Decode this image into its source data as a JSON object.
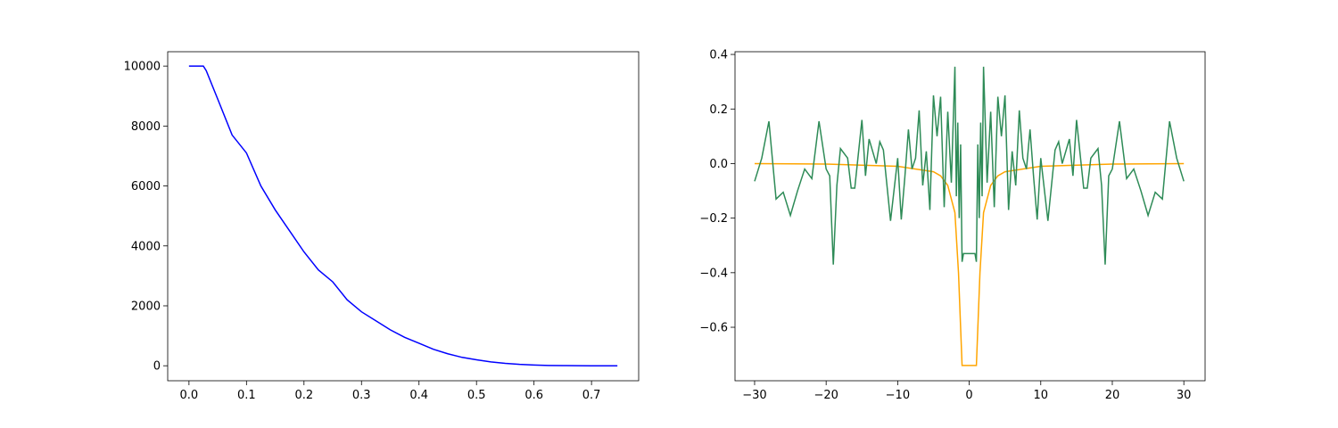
{
  "chart_data": [
    {
      "type": "line",
      "x": [
        0,
        0.025,
        0.03,
        0.05,
        0.075,
        0.1,
        0.125,
        0.15,
        0.175,
        0.2,
        0.225,
        0.25,
        0.275,
        0.3,
        0.325,
        0.35,
        0.375,
        0.4,
        0.425,
        0.45,
        0.475,
        0.5,
        0.525,
        0.55,
        0.575,
        0.6,
        0.625,
        0.65,
        0.675,
        0.7,
        0.725,
        0.745
      ],
      "values": [
        10000,
        10000,
        9850,
        8900,
        7700,
        7100,
        6000,
        5200,
        4500,
        3800,
        3200,
        2800,
        2200,
        1800,
        1500,
        1200,
        950,
        750,
        550,
        400,
        280,
        200,
        130,
        80,
        45,
        25,
        10,
        5,
        2,
        0,
        0,
        0
      ],
      "color": "#0000ff",
      "xlim": [
        -0.037,
        0.782
      ],
      "ylim": [
        -500,
        10480
      ],
      "xticks": [
        {
          "value": 0,
          "label": "0.0"
        },
        0.1,
        0.2,
        0.3,
        0.4,
        0.5,
        0.6,
        0.7
      ],
      "yticks": [
        0,
        2000,
        4000,
        6000,
        8000,
        10000
      ]
    },
    {
      "type": "line",
      "series": [
        {
          "color": "#ffa500",
          "x": [
            -30,
            -20,
            -10,
            -5,
            -4,
            -3,
            -2,
            -1.5,
            -1,
            1,
            1.5,
            2,
            3,
            4,
            5,
            10,
            20,
            30
          ],
          "values": [
            0,
            -0.002,
            -0.01,
            -0.03,
            -0.045,
            -0.08,
            -0.18,
            -0.4,
            -0.74,
            -0.74,
            -0.4,
            -0.18,
            -0.08,
            -0.045,
            -0.03,
            -0.01,
            -0.002,
            0
          ]
        },
        {
          "color": "#2e8b57",
          "x": [
            -30,
            -29,
            -28,
            -27,
            -26,
            -25,
            -24,
            -23,
            -22,
            -21,
            -20,
            -19.5,
            -19,
            -18.5,
            -18,
            -17,
            -16.5,
            -16,
            -15,
            -14.5,
            -14,
            -13,
            -12.5,
            -12,
            -11,
            -10,
            -9.5,
            -9,
            -8.5,
            -8,
            -7.5,
            -7,
            -6.5,
            -6,
            -5.5,
            -5,
            -4.5,
            -4,
            -3.5,
            -3,
            -2.5,
            -2,
            -1.8,
            -1.6,
            -1.4,
            -1.2,
            -1,
            -0.8,
            0,
            0.8,
            1,
            1.2,
            1.4,
            1.6,
            1.8,
            2,
            2.5,
            3,
            3.5,
            4,
            4.5,
            5,
            5.5,
            6,
            6.5,
            7,
            7.5,
            8,
            8.5,
            9,
            9.5,
            10,
            11,
            12,
            12.5,
            13,
            14,
            14.5,
            15,
            16,
            16.5,
            17,
            18,
            18.5,
            19,
            19.5,
            20,
            21,
            22,
            23,
            24,
            25,
            26,
            27,
            28,
            29,
            30
          ],
          "values": [
            -0.065,
            0.02,
            0.155,
            -0.13,
            -0.105,
            -0.19,
            -0.1,
            -0.02,
            -0.055,
            0.155,
            -0.02,
            -0.045,
            -0.37,
            -0.08,
            0.055,
            0.02,
            -0.09,
            -0.09,
            0.16,
            -0.045,
            0.09,
            0.0,
            0.08,
            0.05,
            -0.21,
            0.02,
            -0.205,
            -0.05,
            0.125,
            -0.02,
            0.02,
            0.195,
            -0.08,
            0.045,
            -0.17,
            0.25,
            0.1,
            0.245,
            -0.16,
            0.19,
            -0.07,
            0.355,
            -0.12,
            0.15,
            -0.2,
            0.07,
            -0.36,
            -0.33,
            -0.33,
            -0.33,
            -0.36,
            0.07,
            -0.2,
            0.15,
            -0.12,
            0.355,
            -0.07,
            0.19,
            -0.16,
            0.245,
            0.1,
            0.25,
            -0.17,
            0.045,
            -0.08,
            0.195,
            0.02,
            -0.02,
            0.125,
            -0.05,
            -0.205,
            0.02,
            -0.21,
            0.05,
            0.08,
            0.0,
            0.09,
            -0.045,
            0.16,
            -0.09,
            -0.09,
            0.02,
            0.055,
            -0.08,
            -0.37,
            -0.045,
            -0.02,
            0.155,
            -0.055,
            -0.02,
            -0.1,
            -0.19,
            -0.105,
            -0.13,
            0.155,
            0.02,
            -0.065
          ]
        }
      ],
      "xlim": [
        -32.74,
        32.97
      ],
      "ylim": [
        -0.796,
        0.41
      ],
      "xticks": [
        {
          "value": -30,
          "label": "−30"
        },
        {
          "value": -20,
          "label": "−20"
        },
        {
          "value": -10,
          "label": "−10"
        },
        0,
        10,
        20,
        30
      ],
      "yticks": [
        {
          "value": -0.6,
          "label": "−0.6"
        },
        {
          "value": -0.4,
          "label": "−0.4"
        },
        {
          "value": -0.2,
          "label": "−0.2"
        },
        {
          "value": 0,
          "label": "0.0"
        },
        0.2,
        0.4
      ]
    }
  ]
}
